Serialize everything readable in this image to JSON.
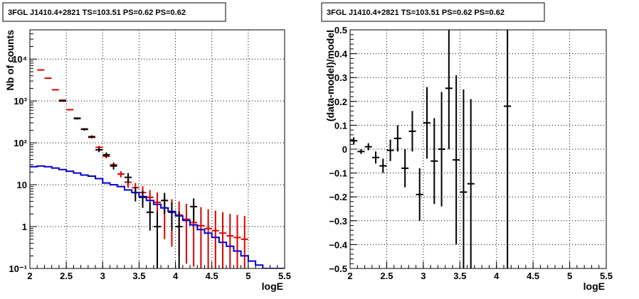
{
  "chart_data": [
    {
      "type": "line",
      "title": "3FGL J1410.4+2821 TS=103.51 PS=0.62 PS=0.62",
      "xlabel": "logE",
      "ylabel": "Nb of counts",
      "xlim": [
        2,
        5.5
      ],
      "ylim": [
        0.1,
        50000
      ],
      "yscale": "log",
      "grid": true,
      "x_ticks": [
        "2",
        "2.5",
        "3",
        "3.5",
        "4",
        "4.5",
        "5",
        "5.5"
      ],
      "y_ticks": [
        "10⁻¹",
        "1",
        "10",
        "10²",
        "10³",
        "10⁴"
      ],
      "series": [
        {
          "role": "model-total",
          "color": "#dd0000",
          "points": [
            {
              "x": 2.15,
              "y": 5500,
              "lo": 5500,
              "hi": 5500
            },
            {
              "x": 2.25,
              "y": 3500,
              "lo": 3500,
              "hi": 3500
            },
            {
              "x": 2.35,
              "y": 1850,
              "lo": 1850,
              "hi": 1850
            },
            {
              "x": 2.45,
              "y": 1050,
              "lo": 1050,
              "hi": 1050
            },
            {
              "x": 2.55,
              "y": 620,
              "lo": 620,
              "hi": 620
            },
            {
              "x": 2.65,
              "y": 390,
              "lo": 390,
              "hi": 390
            },
            {
              "x": 2.75,
              "y": 215,
              "lo": 215,
              "hi": 215
            },
            {
              "x": 2.85,
              "y": 135,
              "lo": 135,
              "hi": 135
            },
            {
              "x": 2.95,
              "y": 78,
              "lo": 72,
              "hi": 85
            },
            {
              "x": 3.05,
              "y": 48,
              "lo": 43,
              "hi": 53
            },
            {
              "x": 3.15,
              "y": 30,
              "lo": 26,
              "hi": 34
            },
            {
              "x": 3.25,
              "y": 18,
              "lo": 15,
              "hi": 21
            },
            {
              "x": 3.35,
              "y": 11.5,
              "lo": 8.5,
              "hi": 14.5
            },
            {
              "x": 3.45,
              "y": 8.5,
              "lo": 6,
              "hi": 11
            },
            {
              "x": 3.55,
              "y": 6.5,
              "lo": 3.8,
              "hi": 9.2
            },
            {
              "x": 3.65,
              "y": 5,
              "lo": 2.5,
              "hi": 7.5
            },
            {
              "x": 3.75,
              "y": 3.8,
              "lo": 1.2,
              "hi": 6.5
            },
            {
              "x": 3.85,
              "y": 2.8,
              "lo": 0.5,
              "hi": 5.5
            },
            {
              "x": 3.95,
              "y": 2.3,
              "lo": 0.33,
              "hi": 4.5
            },
            {
              "x": 4.05,
              "y": 1.9,
              "lo": 0.2,
              "hi": 4.0
            },
            {
              "x": 4.15,
              "y": 1.5,
              "lo": 0.13,
              "hi": 3.5
            },
            {
              "x": 4.25,
              "y": 1.25,
              "lo": 0.11,
              "hi": 3.2
            },
            {
              "x": 4.35,
              "y": 1.05,
              "lo": 0.1,
              "hi": 2.9
            },
            {
              "x": 4.45,
              "y": 0.9,
              "lo": 0.1,
              "hi": 2.6
            },
            {
              "x": 4.55,
              "y": 0.8,
              "lo": 0.1,
              "hi": 2.4
            },
            {
              "x": 4.65,
              "y": 0.7,
              "lo": 0.1,
              "hi": 2.2
            },
            {
              "x": 4.75,
              "y": 0.6,
              "lo": 0.1,
              "hi": 2.0
            },
            {
              "x": 4.85,
              "y": 0.55,
              "lo": 0.1,
              "hi": 1.9
            },
            {
              "x": 4.95,
              "y": 0.5,
              "lo": 0.1,
              "hi": 1.8
            }
          ]
        },
        {
          "role": "data",
          "color": "#000000",
          "points": [
            {
              "x": 2.45,
              "y": 1000,
              "lo": 960,
              "hi": 1040
            },
            {
              "x": 2.65,
              "y": 380,
              "lo": 360,
              "hi": 400
            },
            {
              "x": 2.75,
              "y": 210,
              "lo": 196,
              "hi": 224
            },
            {
              "x": 2.85,
              "y": 140,
              "lo": 129,
              "hi": 151
            },
            {
              "x": 2.95,
              "y": 68,
              "lo": 60,
              "hi": 76
            },
            {
              "x": 3.05,
              "y": 52,
              "lo": 45,
              "hi": 59
            },
            {
              "x": 3.15,
              "y": 28,
              "lo": 23,
              "hi": 33
            },
            {
              "x": 3.35,
              "y": 15,
              "lo": 11,
              "hi": 19
            },
            {
              "x": 3.45,
              "y": 6.5,
              "lo": 4,
              "hi": 9
            },
            {
              "x": 3.55,
              "y": 5,
              "lo": 2.8,
              "hi": 7.2
            },
            {
              "x": 3.65,
              "y": 2.2,
              "lo": 0.8,
              "hi": 3.8
            },
            {
              "x": 3.75,
              "y": 1,
              "lo": 0.1,
              "hi": 2.3
            },
            {
              "x": 3.85,
              "y": 4.2,
              "lo": 2.0,
              "hi": 6.4
            },
            {
              "x": 3.95,
              "y": 2.2,
              "lo": 0.8,
              "hi": 3.8
            },
            {
              "x": 4.05,
              "y": 1,
              "lo": 0.1,
              "hi": 2.3
            },
            {
              "x": 4.25,
              "y": 3,
              "lo": 1.3,
              "hi": 4.7
            }
          ]
        },
        {
          "role": "model-source",
          "color": "#0000cc",
          "steps": [
            {
              "x0": 2.0,
              "x1": 2.1,
              "y": 27
            },
            {
              "x0": 2.1,
              "x1": 2.2,
              "y": 28
            },
            {
              "x0": 2.2,
              "x1": 2.3,
              "y": 27
            },
            {
              "x0": 2.3,
              "x1": 2.4,
              "y": 25
            },
            {
              "x0": 2.4,
              "x1": 2.5,
              "y": 23
            },
            {
              "x0": 2.5,
              "x1": 2.6,
              "y": 21
            },
            {
              "x0": 2.6,
              "x1": 2.7,
              "y": 19
            },
            {
              "x0": 2.7,
              "x1": 2.8,
              "y": 17
            },
            {
              "x0": 2.8,
              "x1": 2.9,
              "y": 16
            },
            {
              "x0": 2.9,
              "x1": 3.0,
              "y": 14
            },
            {
              "x0": 3.0,
              "x1": 3.1,
              "y": 11
            },
            {
              "x0": 3.1,
              "x1": 3.2,
              "y": 10
            },
            {
              "x0": 3.2,
              "x1": 3.3,
              "y": 9
            },
            {
              "x0": 3.3,
              "x1": 3.4,
              "y": 7.5
            },
            {
              "x0": 3.4,
              "x1": 3.5,
              "y": 6.5
            },
            {
              "x0": 3.5,
              "x1": 3.6,
              "y": 5.2
            },
            {
              "x0": 3.6,
              "x1": 3.7,
              "y": 4.2
            },
            {
              "x0": 3.7,
              "x1": 3.8,
              "y": 3.4
            },
            {
              "x0": 3.8,
              "x1": 3.9,
              "y": 2.8
            },
            {
              "x0": 3.9,
              "x1": 4.0,
              "y": 2.3
            },
            {
              "x0": 4.0,
              "x1": 4.1,
              "y": 1.8
            },
            {
              "x0": 4.1,
              "x1": 4.2,
              "y": 1.4
            },
            {
              "x0": 4.2,
              "x1": 4.3,
              "y": 1.1
            },
            {
              "x0": 4.3,
              "x1": 4.4,
              "y": 0.85
            },
            {
              "x0": 4.4,
              "x1": 4.5,
              "y": 0.7
            },
            {
              "x0": 4.5,
              "x1": 4.6,
              "y": 0.55
            },
            {
              "x0": 4.6,
              "x1": 4.7,
              "y": 0.42
            },
            {
              "x0": 4.7,
              "x1": 4.8,
              "y": 0.34
            },
            {
              "x0": 4.8,
              "x1": 4.9,
              "y": 0.26
            },
            {
              "x0": 4.9,
              "x1": 5.0,
              "y": 0.2
            },
            {
              "x0": 5.0,
              "x1": 5.1,
              "y": 0.15
            },
            {
              "x0": 5.1,
              "x1": 5.2,
              "y": 0.12
            },
            {
              "x0": 5.2,
              "x1": 5.5,
              "y": 0.1
            }
          ]
        }
      ]
    },
    {
      "type": "scatter",
      "title": "3FGL J1410.4+2821 TS=103.51 PS=0.62 PS=0.62",
      "xlabel": "logE",
      "ylabel": "(data-model)/model",
      "xlim": [
        2,
        5.5
      ],
      "ylim": [
        -0.5,
        0.5
      ],
      "grid": true,
      "x_ticks": [
        "2",
        "2.5",
        "3",
        "3.5",
        "4",
        "4.5",
        "5",
        "5.5"
      ],
      "y_ticks": [
        "−0.5",
        "−0.4",
        "−0.3",
        "−0.2",
        "−0.1",
        "0",
        "0.1",
        "0.2",
        "0.3",
        "0.4",
        "0.5"
      ],
      "series": [
        {
          "role": "residuals",
          "color": "#000000",
          "points": [
            {
              "x": 2.05,
              "y": 0.035,
              "lo": 0.02,
              "hi": 0.05
            },
            {
              "x": 2.15,
              "y": -0.01,
              "lo": -0.02,
              "hi": 0.0
            },
            {
              "x": 2.25,
              "y": 0.01,
              "lo": -0.005,
              "hi": 0.025
            },
            {
              "x": 2.35,
              "y": -0.035,
              "lo": -0.06,
              "hi": -0.01
            },
            {
              "x": 2.45,
              "y": -0.07,
              "lo": -0.1,
              "hi": -0.04
            },
            {
              "x": 2.55,
              "y": -0.005,
              "lo": -0.05,
              "hi": 0.04
            },
            {
              "x": 2.65,
              "y": 0.045,
              "lo": -0.01,
              "hi": 0.1
            },
            {
              "x": 2.75,
              "y": -0.08,
              "lo": -0.16,
              "hi": 0.0
            },
            {
              "x": 2.85,
              "y": 0.075,
              "lo": -0.01,
              "hi": 0.16
            },
            {
              "x": 2.95,
              "y": -0.19,
              "lo": -0.3,
              "hi": -0.08
            },
            {
              "x": 3.05,
              "y": 0.11,
              "lo": -0.04,
              "hi": 0.26
            },
            {
              "x": 3.15,
              "y": -0.05,
              "lo": -0.23,
              "hi": 0.13
            },
            {
              "x": 3.25,
              "y": 0.0,
              "lo": -0.24,
              "hi": 0.24
            },
            {
              "x": 3.35,
              "y": 0.255,
              "lo": 0.0,
              "hi": 0.5
            },
            {
              "x": 3.45,
              "y": -0.045,
              "lo": -0.4,
              "hi": 0.31
            },
            {
              "x": 3.55,
              "y": -0.18,
              "lo": -0.5,
              "hi": 0.25
            },
            {
              "x": 3.65,
              "y": -0.145,
              "lo": -0.5,
              "hi": 0.21
            },
            {
              "x": 4.15,
              "y": 0.18,
              "lo": -0.5,
              "hi": 0.5
            }
          ]
        }
      ]
    }
  ]
}
